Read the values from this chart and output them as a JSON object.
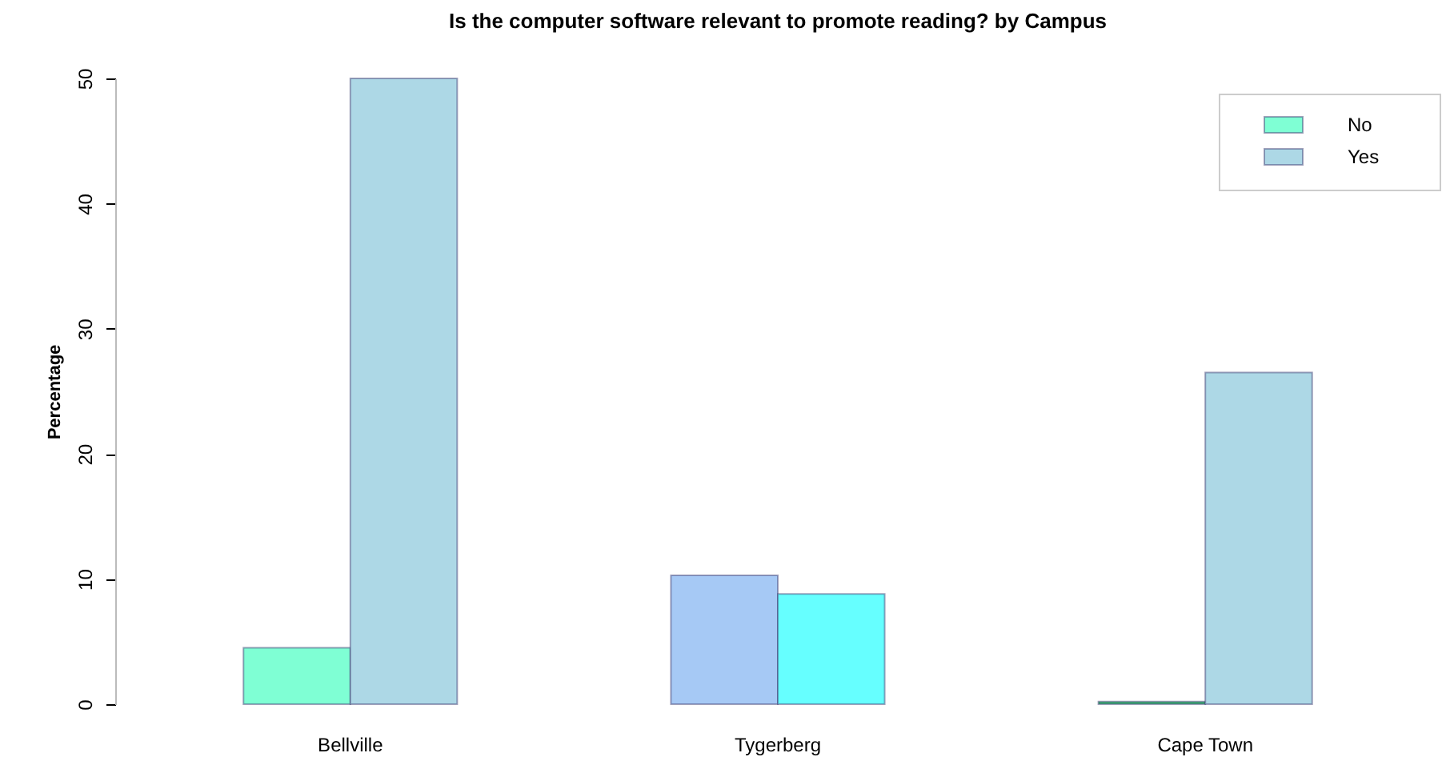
{
  "chart_data": {
    "type": "bar",
    "title": "Is the computer software relevant to promote reading? by Campus",
    "ylabel": "Percentage",
    "categories": [
      "Bellville",
      "Tygerberg",
      "Cape Town"
    ],
    "series": [
      {
        "name": "No",
        "color": "#7fffd4",
        "colors": [
          "#7fffd4",
          "#a6c9f5",
          "#3cb371"
        ],
        "values": [
          4.5,
          10.3,
          0.2
        ]
      },
      {
        "name": "Yes",
        "color": "#add8e6",
        "colors": [
          "#add8e6",
          "#66ffff",
          "#add8e6"
        ],
        "values": [
          50,
          8.8,
          26.5
        ]
      }
    ],
    "ylim": [
      0,
      50
    ],
    "yticks": [
      0,
      10,
      20,
      30,
      40,
      50
    ],
    "grid": false,
    "legend": "top right"
  }
}
